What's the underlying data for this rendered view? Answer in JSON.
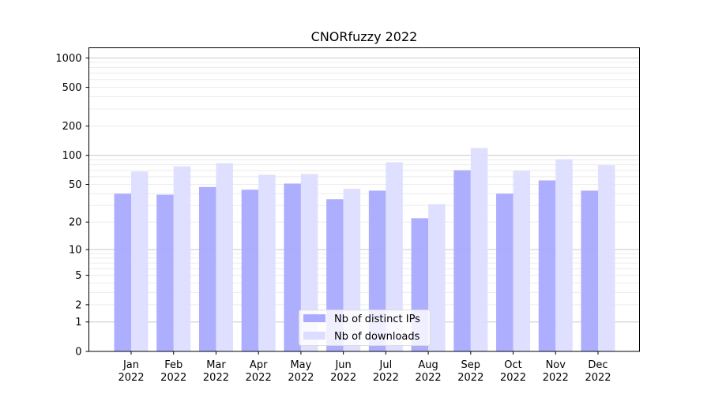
{
  "chart_data": {
    "type": "bar",
    "title": "CNORfuzzy 2022",
    "xlabel": "",
    "ylabel": "",
    "yscale": "symlog (log10(1+y))",
    "ylim": [
      0,
      1270
    ],
    "yticks": [
      0,
      1,
      2,
      5,
      10,
      20,
      50,
      100,
      200,
      500,
      1000
    ],
    "grid": true,
    "legend_position": "bottom-center",
    "categories": [
      "Jan\n2022",
      "Feb\n2022",
      "Mar\n2022",
      "Apr\n2022",
      "May\n2022",
      "Jun\n2022",
      "Jul\n2022",
      "Aug\n2022",
      "Sep\n2022",
      "Oct\n2022",
      "Nov\n2022",
      "Dec\n2022"
    ],
    "series": [
      {
        "name": "Nb of distinct IPs",
        "color": "#aaaaff",
        "values": [
          40,
          39,
          47,
          44,
          51,
          35,
          43,
          22,
          70,
          40,
          55,
          43
        ]
      },
      {
        "name": "Nb of downloads",
        "color": "#ddddff",
        "values": [
          68,
          77,
          83,
          63,
          64,
          45,
          85,
          31,
          119,
          69,
          91,
          79
        ]
      }
    ]
  }
}
